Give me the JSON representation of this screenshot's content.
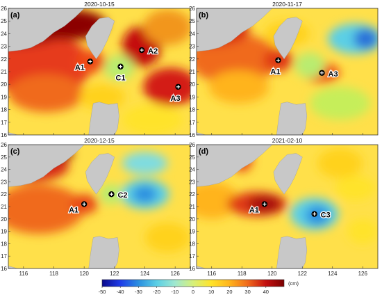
{
  "panels": [
    {
      "label": "(a)",
      "date": "2020-10-15",
      "eddies": [
        {
          "name": "A1",
          "lon": 120.4,
          "lat": 21.8,
          "label_pos": "left"
        },
        {
          "name": "A2",
          "lon": 123.8,
          "lat": 22.7,
          "label_pos": "right"
        },
        {
          "name": "C1",
          "lon": 122.4,
          "lat": 21.4,
          "label_pos": "below"
        },
        {
          "name": "A3",
          "lon": 126.2,
          "lat": 19.8,
          "label_pos": "below-left"
        }
      ],
      "blobs": [
        {
          "lon": 117.0,
          "lat": 21.5,
          "rx": 3.5,
          "ry": 2.5,
          "color": "#e63a1c"
        },
        {
          "lon": 115.5,
          "lat": 24.5,
          "rx": 3.5,
          "ry": 1.5,
          "color": "#a50a0a"
        },
        {
          "lon": 119.0,
          "lat": 24.7,
          "rx": 2.5,
          "ry": 1.2,
          "color": "#8c0000"
        },
        {
          "lon": 117.5,
          "lat": 19.3,
          "rx": 2.5,
          "ry": 1.5,
          "color": "#f06a1c"
        },
        {
          "lon": 123.8,
          "lat": 23.0,
          "rx": 1.3,
          "ry": 1.6,
          "color": "#c41010"
        },
        {
          "lon": 125.7,
          "lat": 19.8,
          "rx": 1.8,
          "ry": 1.5,
          "color": "#d31f12"
        },
        {
          "lon": 120.4,
          "lat": 21.8,
          "rx": 1.0,
          "ry": 0.9,
          "color": "#ee4a18"
        },
        {
          "lon": 122.3,
          "lat": 21.3,
          "rx": 1.0,
          "ry": 1.0,
          "color": "#b9ec6f"
        },
        {
          "lon": 121.2,
          "lat": 19.0,
          "rx": 1.5,
          "ry": 1.0,
          "color": "#ffd21a"
        },
        {
          "lon": 124.5,
          "lat": 17.2,
          "rx": 2.0,
          "ry": 1.2,
          "color": "#ffe32a"
        },
        {
          "lon": 125.5,
          "lat": 24.5,
          "rx": 1.6,
          "ry": 1.4,
          "color": "#f2961e"
        }
      ]
    },
    {
      "label": "(b)",
      "date": "2020-11-17",
      "eddies": [
        {
          "name": "A1",
          "lon": 120.4,
          "lat": 21.9,
          "label_pos": "below-left"
        },
        {
          "name": "A3",
          "lon": 123.3,
          "lat": 20.9,
          "label_pos": "right"
        }
      ],
      "blobs": [
        {
          "lon": 117.5,
          "lat": 22.0,
          "rx": 3.0,
          "ry": 2.0,
          "color": "#f06a1c"
        },
        {
          "lon": 116.0,
          "lat": 24.3,
          "rx": 2.5,
          "ry": 1.3,
          "color": "#d82e16"
        },
        {
          "lon": 117.8,
          "lat": 19.8,
          "rx": 2.0,
          "ry": 1.3,
          "color": "#ffb41c"
        },
        {
          "lon": 120.4,
          "lat": 21.9,
          "rx": 1.0,
          "ry": 0.9,
          "color": "#e03a16"
        },
        {
          "lon": 123.3,
          "lat": 20.9,
          "rx": 1.2,
          "ry": 0.8,
          "color": "#ee5518"
        },
        {
          "lon": 125.5,
          "lat": 23.6,
          "rx": 1.8,
          "ry": 1.2,
          "color": "#5bcfe5"
        },
        {
          "lon": 126.2,
          "lat": 23.6,
          "rx": 0.8,
          "ry": 0.8,
          "color": "#2b6fd8"
        },
        {
          "lon": 122.5,
          "lat": 21.5,
          "rx": 1.0,
          "ry": 1.0,
          "color": "#b9ec6f"
        },
        {
          "lon": 124.5,
          "lat": 18.5,
          "rx": 2.0,
          "ry": 1.3,
          "color": "#c6ee5a"
        },
        {
          "lon": 121.0,
          "lat": 24.0,
          "rx": 1.5,
          "ry": 1.0,
          "color": "#ffd21a"
        }
      ]
    },
    {
      "label": "(c)",
      "date": "2020-12-15",
      "eddies": [
        {
          "name": "A1",
          "lon": 120.0,
          "lat": 21.2,
          "label_pos": "left"
        },
        {
          "name": "C2",
          "lon": 121.8,
          "lat": 22.0,
          "label_pos": "right"
        }
      ],
      "blobs": [
        {
          "lon": 117.0,
          "lat": 20.8,
          "rx": 3.0,
          "ry": 2.0,
          "color": "#f06a1c"
        },
        {
          "lon": 116.5,
          "lat": 24.3,
          "rx": 2.5,
          "ry": 1.3,
          "color": "#d82e16"
        },
        {
          "lon": 117.0,
          "lat": 25.3,
          "rx": 2.3,
          "ry": 0.8,
          "color": "#8c0000"
        },
        {
          "lon": 120.0,
          "lat": 21.2,
          "rx": 0.9,
          "ry": 0.8,
          "color": "#e84a18"
        },
        {
          "lon": 124.0,
          "lat": 22.0,
          "rx": 1.6,
          "ry": 1.2,
          "color": "#5bcfe5"
        },
        {
          "lon": 124.0,
          "lat": 22.0,
          "rx": 0.8,
          "ry": 0.7,
          "color": "#2b8fe0"
        },
        {
          "lon": 124.0,
          "lat": 24.5,
          "rx": 1.5,
          "ry": 0.9,
          "color": "#7fdce0"
        },
        {
          "lon": 125.5,
          "lat": 18.5,
          "rx": 1.5,
          "ry": 1.2,
          "color": "#ffd21a"
        },
        {
          "lon": 121.8,
          "lat": 22.0,
          "rx": 0.8,
          "ry": 0.8,
          "color": "#b9ec6f"
        }
      ]
    },
    {
      "label": "(d)",
      "date": "2021-02-10",
      "eddies": [
        {
          "name": "A1",
          "lon": 119.5,
          "lat": 21.2,
          "label_pos": "left"
        },
        {
          "name": "C3",
          "lon": 122.8,
          "lat": 20.4,
          "label_pos": "right"
        }
      ],
      "blobs": [
        {
          "lon": 116.0,
          "lat": 21.5,
          "rx": 1.8,
          "ry": 1.5,
          "color": "#ffb41c"
        },
        {
          "lon": 119.0,
          "lat": 21.2,
          "rx": 2.0,
          "ry": 1.0,
          "color": "#e03a16"
        },
        {
          "lon": 119.5,
          "lat": 21.2,
          "rx": 1.1,
          "ry": 0.7,
          "color": "#a50a0a"
        },
        {
          "lon": 118.0,
          "lat": 24.8,
          "rx": 0.7,
          "ry": 1.0,
          "color": "#e84a18"
        },
        {
          "lon": 122.8,
          "lat": 20.4,
          "rx": 1.6,
          "ry": 1.3,
          "color": "#5bcfe5"
        },
        {
          "lon": 123.0,
          "lat": 20.3,
          "rx": 0.8,
          "ry": 0.8,
          "color": "#2b8fe0"
        },
        {
          "lon": 124.5,
          "lat": 24.5,
          "rx": 1.5,
          "ry": 1.2,
          "color": "#ffd21a"
        },
        {
          "lon": 125.5,
          "lat": 22.5,
          "rx": 1.3,
          "ry": 1.0,
          "color": "#ffe32a"
        },
        {
          "lon": 126.0,
          "lat": 19.0,
          "rx": 1.0,
          "ry": 1.0,
          "color": "#ffe32a"
        }
      ]
    }
  ],
  "axes": {
    "lon_range": [
      115,
      127
    ],
    "lat_range": [
      16,
      26
    ],
    "lon_ticks": [
      "116",
      "118",
      "120",
      "122",
      "124",
      "126"
    ],
    "lat_ticks": [
      "16",
      "17",
      "18",
      "19",
      "20",
      "21",
      "22",
      "23",
      "24",
      "25",
      "26"
    ]
  },
  "colorbar": {
    "ticks": [
      "-50",
      "-40",
      "-30",
      "-20",
      "-10",
      "0",
      "10",
      "20",
      "30",
      "40"
    ],
    "unit": "(cm)",
    "range": [
      -50,
      50
    ],
    "colors": [
      "#0a0a8c",
      "#1f3ce8",
      "#2b8fe0",
      "#5bcfe5",
      "#9fe8d0",
      "#d6f07a",
      "#ffe32a",
      "#ffb41c",
      "#f06a1c",
      "#c41010",
      "#7a0000"
    ]
  },
  "land_color": "#c8c8c8",
  "background_color": "#ffe04a"
}
